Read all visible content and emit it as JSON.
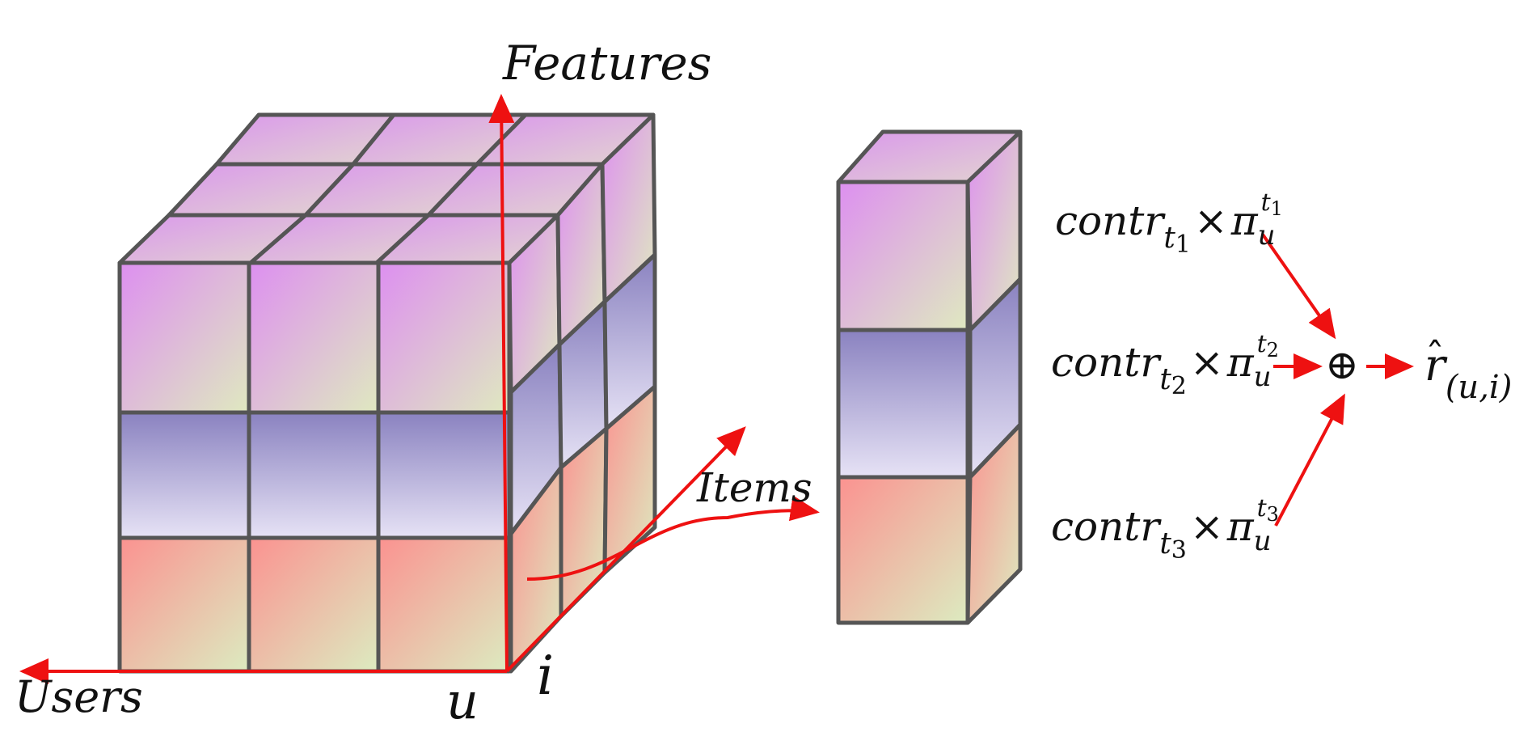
{
  "axes": {
    "features": "Features",
    "users": "Users",
    "items": "Items",
    "u": "u",
    "i": "i"
  },
  "terms": [
    {
      "base": "contr",
      "sub": "t",
      "subidx": "1",
      "times": "×",
      "pi": "π",
      "pisub": "u",
      "pisup": "t",
      "pisupidx": "1"
    },
    {
      "base": "contr",
      "sub": "t",
      "subidx": "2",
      "times": "×",
      "pi": "π",
      "pisub": "u",
      "pisup": "t",
      "pisupidx": "2"
    },
    {
      "base": "contr",
      "sub": "t",
      "subidx": "3",
      "times": "×",
      "pi": "π",
      "pisub": "u",
      "pisup": "t",
      "pisupidx": "3"
    }
  ],
  "sum_symbol": "⊕",
  "result": {
    "hat": "ˆ",
    "base": "r",
    "sub": "(u,i)"
  },
  "colors": {
    "outline": "#555555",
    "arrow": "#ee1111",
    "pink_top": "#dd8ff0",
    "pink_bottom": "#dfe9c0",
    "purple_top": "#8a82c0",
    "purple_bottom": "#e6e2f5",
    "salmon_top": "#fb9290",
    "salmon_bottom": "#dcebc0"
  }
}
